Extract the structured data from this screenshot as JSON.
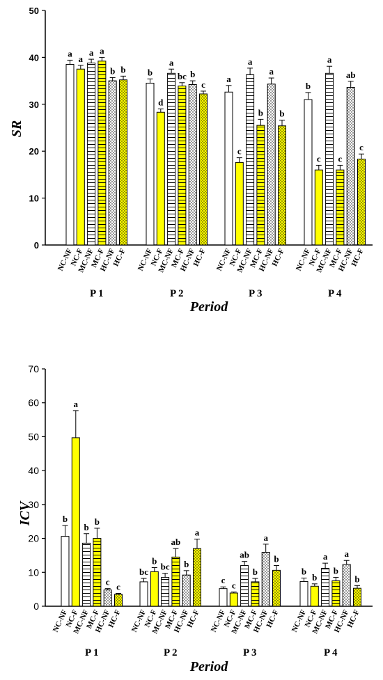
{
  "chart_data": [
    {
      "type": "bar",
      "ylabel": "SR",
      "xlabel": "Period",
      "ylim": [
        0,
        50
      ],
      "yticks": [
        0,
        10,
        20,
        30,
        40,
        50
      ],
      "groups": [
        "P 1",
        "P 2",
        "P 3",
        "P 4"
      ],
      "categories": [
        "NC-NF",
        "NC-F",
        "MC-NF",
        "MC-F",
        "HC-NF",
        "HC-F"
      ],
      "series": [
        {
          "values": [
            38.5,
            37.5,
            38.8,
            39.2,
            35.0,
            35.2
          ],
          "errors": [
            0.9,
            0.8,
            0.8,
            0.8,
            0.7,
            0.8
          ],
          "letters": [
            "a",
            "a",
            "a",
            "a",
            "b",
            "b"
          ]
        },
        {
          "values": [
            34.5,
            28.3,
            36.6,
            33.9,
            34.2,
            32.2
          ],
          "errors": [
            0.9,
            0.7,
            0.9,
            0.7,
            0.8,
            0.6
          ],
          "letters": [
            "b",
            "d",
            "a",
            "bc",
            "b",
            "c"
          ]
        },
        {
          "values": [
            32.6,
            17.6,
            36.3,
            25.5,
            34.3,
            25.4
          ],
          "errors": [
            1.4,
            1.0,
            1.4,
            1.3,
            1.3,
            1.2
          ],
          "letters": [
            "a",
            "c",
            "a",
            "b",
            "a",
            "b"
          ]
        },
        {
          "values": [
            31.0,
            16.0,
            36.6,
            16.0,
            33.6,
            18.3
          ],
          "errors": [
            1.5,
            1.0,
            1.5,
            1.0,
            1.3,
            1.1
          ],
          "letters": [
            "b",
            "c",
            "a",
            "c",
            "ab",
            "c"
          ]
        }
      ]
    },
    {
      "type": "bar",
      "ylabel": "ICV",
      "xlabel": "Period",
      "ylim": [
        0,
        70
      ],
      "yticks": [
        0,
        10,
        20,
        30,
        40,
        50,
        60,
        70
      ],
      "groups": [
        "P 1",
        "P 2",
        "P 3",
        "P 4"
      ],
      "categories": [
        "NC-NF",
        "NC-F",
        "MC-NF",
        "MC-F",
        "HC-NF",
        "HC-F"
      ],
      "series": [
        {
          "values": [
            20.6,
            49.7,
            18.6,
            20.0,
            4.8,
            3.5
          ],
          "errors": [
            3.2,
            8.0,
            2.8,
            3.0,
            0.4,
            0.3
          ],
          "letters": [
            "b",
            "a",
            "b",
            "b",
            "c",
            "c"
          ]
        },
        {
          "values": [
            7.2,
            10.2,
            8.5,
            14.5,
            9.2,
            17.0
          ],
          "errors": [
            1.0,
            1.2,
            1.2,
            2.5,
            1.3,
            2.8
          ],
          "letters": [
            "bc",
            "b",
            "bc",
            "ab",
            "b",
            "a"
          ]
        },
        {
          "values": [
            5.2,
            3.9,
            12.0,
            7.2,
            15.9,
            10.6
          ],
          "errors": [
            0.5,
            0.3,
            1.2,
            1.0,
            2.4,
            1.4
          ],
          "letters": [
            "c",
            "c",
            "ab",
            "b",
            "a",
            "b"
          ]
        },
        {
          "values": [
            7.3,
            5.9,
            11.2,
            7.5,
            12.3,
            5.3
          ],
          "errors": [
            1.0,
            0.7,
            1.5,
            1.0,
            1.2,
            0.8
          ],
          "letters": [
            "b",
            "b",
            "a",
            "b",
            "a",
            "b"
          ]
        }
      ]
    }
  ]
}
